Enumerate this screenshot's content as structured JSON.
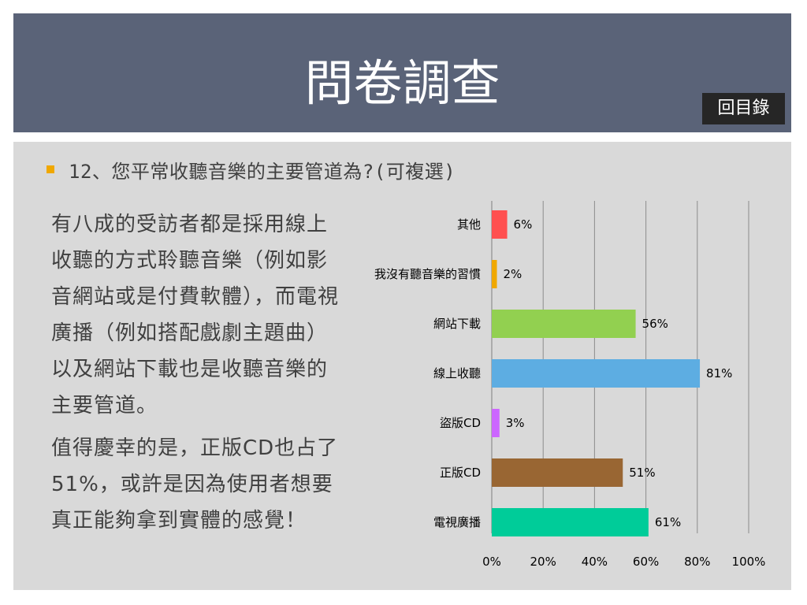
{
  "header": {
    "title": "問卷調查",
    "toc_button": "回目錄"
  },
  "question": "12、您平常收聽音樂的主要管道為?(可複選)",
  "paragraphs": [
    "有八成的受訪者都是採用線上收聽的方式聆聽音樂（例如影音網站或是付費軟體），而電視廣播（例如搭配戲劇主題曲）以及網站下載也是收聽音樂的主要管道。",
    "值得慶幸的是，正版CD也占了51%，或許是因為使用者想要真正能夠拿到實體的感覺！"
  ],
  "colors": {
    "header_bg": "#5a6378",
    "content_bg": "#d9d9d9",
    "bullet": "#f0a800"
  },
  "chart_data": {
    "type": "bar",
    "orientation": "horizontal",
    "categories": [
      "其他",
      "我沒有聽音樂的習慣",
      "網站下載",
      "線上收聽",
      "盜版CD",
      "正版CD",
      "電視廣播"
    ],
    "values": [
      6,
      2,
      56,
      81,
      3,
      51,
      61
    ],
    "value_labels": [
      "6%",
      "2%",
      "56%",
      "81%",
      "3%",
      "51%",
      "61%"
    ],
    "colors": [
      "#ff5050",
      "#f0a800",
      "#92d050",
      "#5dade2",
      "#cc66ff",
      "#996633",
      "#00cc99"
    ],
    "xlim": [
      0,
      100
    ],
    "xticks": [
      "0%",
      "20%",
      "40%",
      "60%",
      "80%",
      "100%"
    ],
    "grid": true,
    "legend": false
  }
}
